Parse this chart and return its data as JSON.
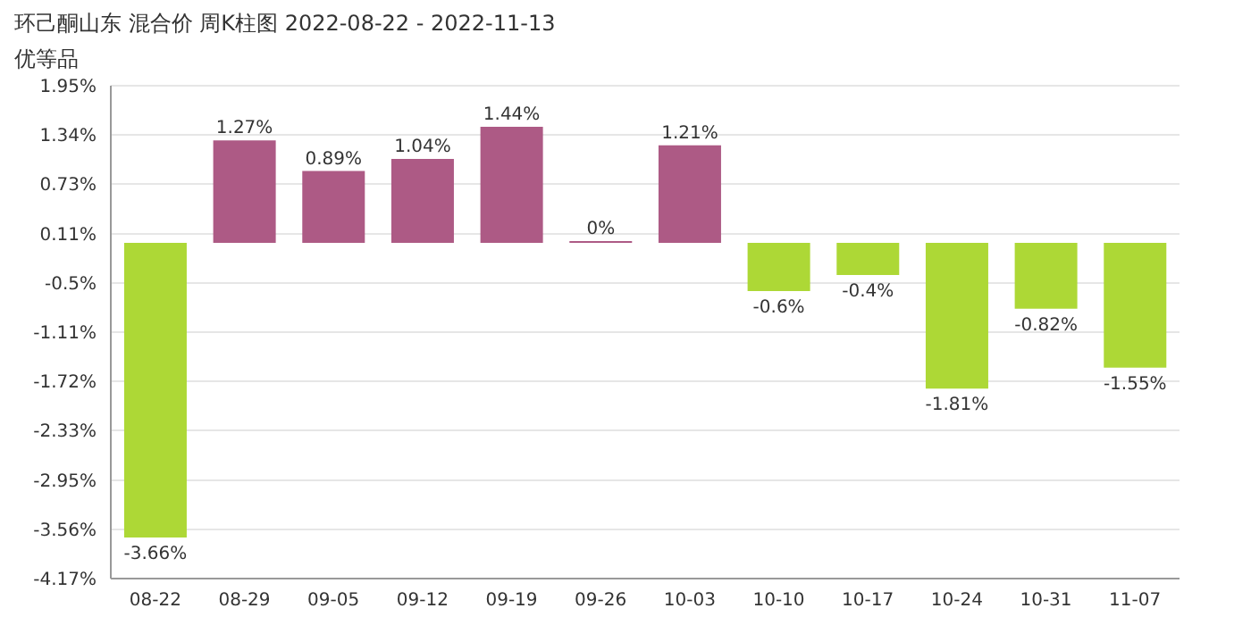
{
  "chart_data": {
    "type": "bar",
    "title": "环己酮山东 混合价 周K柱图 2022-08-22 - 2022-11-13",
    "subtitle": "优等品",
    "categories": [
      "08-22",
      "08-29",
      "09-05",
      "09-12",
      "09-19",
      "09-26",
      "10-03",
      "10-10",
      "10-17",
      "10-24",
      "10-31",
      "11-07"
    ],
    "values": [
      -3.66,
      1.27,
      0.89,
      1.04,
      1.44,
      0,
      1.21,
      -0.6,
      -0.4,
      -1.81,
      -0.82,
      -1.55
    ],
    "colors": [
      "#add836",
      "#ad5a85",
      "#ad5a85",
      "#ad5a85",
      "#ad5a85",
      "#ad5a85",
      "#ad5a85",
      "#add836",
      "#add836",
      "#add836",
      "#add836",
      "#add836"
    ],
    "value_labels": [
      "-3.66%",
      "1.27%",
      "0.89%",
      "1.04%",
      "1.44%",
      "0%",
      "1.21%",
      "-0.6%",
      "-0.4%",
      "-1.81%",
      "-0.82%",
      "-1.55%"
    ],
    "ylim": [
      -4.17,
      1.95
    ],
    "yticks": [
      {
        "value": 1.95,
        "label": "1.95%"
      },
      {
        "value": 1.34,
        "label": "1.34%"
      },
      {
        "value": 0.73,
        "label": "0.73%"
      },
      {
        "value": 0.11,
        "label": "0.11%"
      },
      {
        "value": -0.5,
        "label": "-0.5%"
      },
      {
        "value": -1.11,
        "label": "-1.11%"
      },
      {
        "value": -1.72,
        "label": "-1.72%"
      },
      {
        "value": -2.33,
        "label": "-2.33%"
      },
      {
        "value": -2.95,
        "label": "-2.95%"
      },
      {
        "value": -3.56,
        "label": "-3.56%"
      },
      {
        "value": -4.17,
        "label": "-4.17%"
      }
    ],
    "grid": "y"
  }
}
